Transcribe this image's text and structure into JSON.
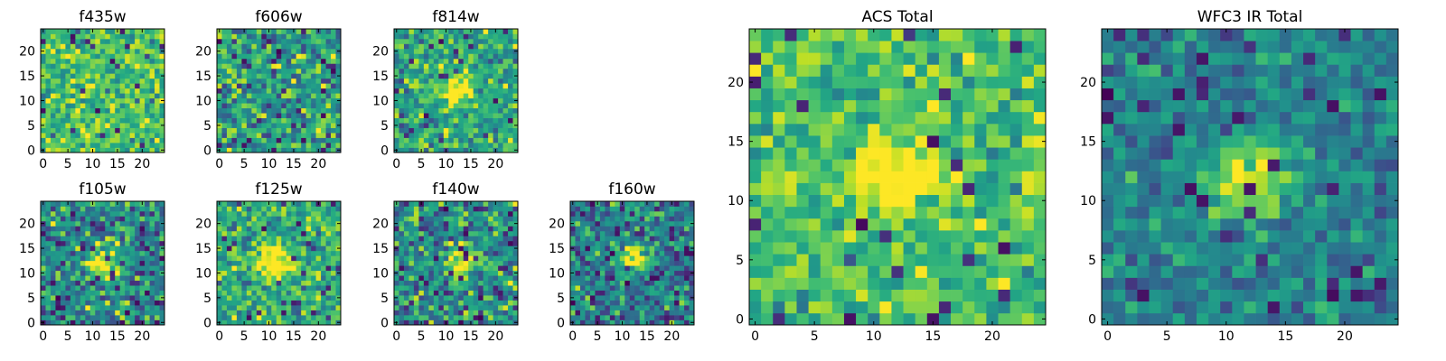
{
  "colormap": "viridis",
  "chart_data": [
    {
      "type": "heatmap",
      "title": "f435w",
      "xticks": [
        "0",
        "5",
        "10",
        "15",
        "20"
      ],
      "yticks": [
        "0",
        "5",
        "10",
        "15",
        "20"
      ],
      "xlim": [
        -0.5,
        24.5
      ],
      "ylim": [
        -0.5,
        24.5
      ],
      "grid_size": 25,
      "has_peak": false,
      "background_level": 0.7,
      "noise": 0.16,
      "dark_pixel_fraction": 0.03
    },
    {
      "type": "heatmap",
      "title": "f606w",
      "xticks": [
        "0",
        "5",
        "10",
        "15",
        "20"
      ],
      "yticks": [
        "0",
        "5",
        "10",
        "15",
        "20"
      ],
      "xlim": [
        -0.5,
        24.5
      ],
      "ylim": [
        -0.5,
        24.5
      ],
      "grid_size": 25,
      "has_peak": false,
      "background_level": 0.55,
      "noise": 0.18,
      "dark_pixel_fraction": 0.04
    },
    {
      "type": "heatmap",
      "title": "f814w",
      "xticks": [
        "0",
        "5",
        "10",
        "15",
        "20"
      ],
      "yticks": [
        "0",
        "5",
        "10",
        "15",
        "20"
      ],
      "xlim": [
        -0.5,
        24.5
      ],
      "ylim": [
        -0.5,
        24.5
      ],
      "grid_size": 25,
      "has_peak": true,
      "peak_center": [
        12,
        12
      ],
      "background_level": 0.6,
      "noise": 0.16,
      "dark_pixel_fraction": 0.04
    },
    {
      "type": "heatmap",
      "title": "f105w",
      "xticks": [
        "0",
        "5",
        "10",
        "15",
        "20"
      ],
      "yticks": [
        "0",
        "5",
        "10",
        "15",
        "20"
      ],
      "xlim": [
        -0.5,
        24.5
      ],
      "ylim": [
        -0.5,
        24.5
      ],
      "grid_size": 25,
      "has_peak": true,
      "peak_center": [
        12,
        12
      ],
      "background_level": 0.48,
      "noise": 0.17,
      "dark_pixel_fraction": 0.06
    },
    {
      "type": "heatmap",
      "title": "f125w",
      "xticks": [
        "0",
        "5",
        "10",
        "15",
        "20"
      ],
      "yticks": [
        "0",
        "5",
        "10",
        "15",
        "20"
      ],
      "xlim": [
        -0.5,
        24.5
      ],
      "ylim": [
        -0.5,
        24.5
      ],
      "grid_size": 25,
      "has_peak": true,
      "peak_center": [
        11,
        12
      ],
      "background_level": 0.62,
      "noise": 0.16,
      "dark_pixel_fraction": 0.04
    },
    {
      "type": "heatmap",
      "title": "f140w",
      "xticks": [
        "0",
        "5",
        "10",
        "15",
        "20"
      ],
      "yticks": [
        "0",
        "5",
        "10",
        "15",
        "20"
      ],
      "xlim": [
        -0.5,
        24.5
      ],
      "ylim": [
        -0.5,
        24.5
      ],
      "grid_size": 25,
      "has_peak": true,
      "peak_center": [
        13,
        12
      ],
      "background_level": 0.5,
      "noise": 0.17,
      "dark_pixel_fraction": 0.06
    },
    {
      "type": "heatmap",
      "title": "f160w",
      "xticks": [
        "0",
        "5",
        "10",
        "15",
        "20"
      ],
      "yticks": [
        "0",
        "5",
        "10",
        "15",
        "20"
      ],
      "xlim": [
        -0.5,
        24.5
      ],
      "ylim": [
        -0.5,
        24.5
      ],
      "grid_size": 25,
      "has_peak": true,
      "peak_center": [
        13,
        13
      ],
      "background_level": 0.42,
      "noise": 0.17,
      "dark_pixel_fraction": 0.07
    },
    {
      "type": "heatmap",
      "title": "ACS Total",
      "xticks": [
        "0",
        "5",
        "10",
        "15",
        "20"
      ],
      "yticks": [
        "0",
        "5",
        "10",
        "15",
        "20"
      ],
      "xlim": [
        -0.5,
        24.5
      ],
      "ylim": [
        -0.5,
        24.5
      ],
      "grid_size": 25,
      "has_peak": true,
      "peak_center": [
        12,
        12
      ],
      "background_level": 0.7,
      "noise": 0.13,
      "dark_pixel_fraction": 0.03
    },
    {
      "type": "heatmap",
      "title": "WFC3 IR Total",
      "xticks": [
        "0",
        "5",
        "10",
        "15",
        "20"
      ],
      "yticks": [
        "0",
        "5",
        "10",
        "15",
        "20"
      ],
      "xlim": [
        -0.5,
        24.5
      ],
      "ylim": [
        -0.5,
        24.5
      ],
      "grid_size": 25,
      "has_peak": true,
      "peak_center": [
        12,
        12
      ],
      "background_level": 0.45,
      "noise": 0.12,
      "dark_pixel_fraction": 0.05
    }
  ]
}
